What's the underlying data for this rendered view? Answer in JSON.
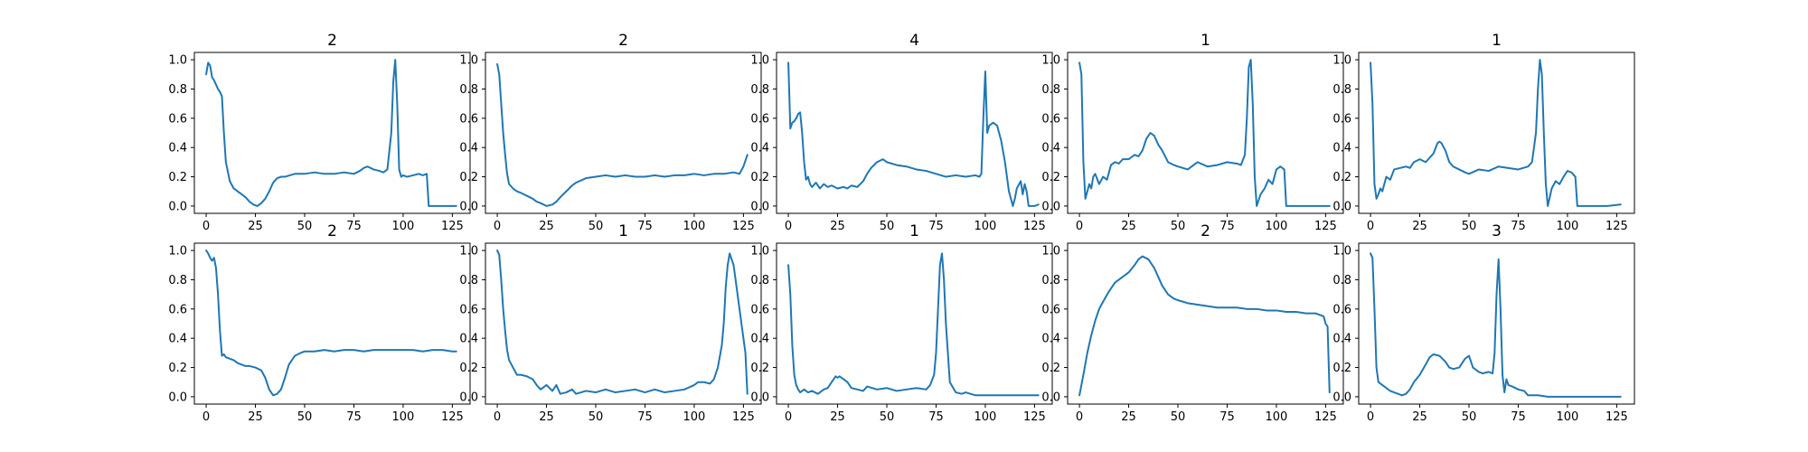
{
  "figure": {
    "background": "#ffffff",
    "series_color": "#1f77b4"
  },
  "chart_data": [
    {
      "type": "line",
      "title": "2",
      "xlim": [
        -6,
        134
      ],
      "ylim": [
        -0.05,
        1.05
      ],
      "x_ticks": [
        0,
        25,
        50,
        75,
        100,
        125
      ],
      "y_ticks": [
        0.0,
        0.2,
        0.4,
        0.6,
        0.8,
        1.0
      ],
      "x": [
        0,
        1,
        2,
        3,
        4,
        5,
        6,
        7,
        8,
        9,
        10,
        12,
        14,
        16,
        18,
        20,
        22,
        24,
        26,
        28,
        30,
        32,
        34,
        36,
        38,
        40,
        45,
        50,
        55,
        60,
        65,
        70,
        75,
        78,
        80,
        82,
        85,
        88,
        90,
        92,
        94,
        95,
        96,
        97,
        98,
        99,
        100,
        102,
        105,
        108,
        110,
        112,
        113,
        120,
        127
      ],
      "y": [
        0.9,
        0.98,
        0.96,
        0.88,
        0.86,
        0.83,
        0.8,
        0.78,
        0.75,
        0.5,
        0.3,
        0.17,
        0.12,
        0.1,
        0.08,
        0.06,
        0.03,
        0.01,
        0.0,
        0.02,
        0.05,
        0.1,
        0.16,
        0.19,
        0.2,
        0.2,
        0.22,
        0.22,
        0.23,
        0.22,
        0.22,
        0.23,
        0.22,
        0.24,
        0.26,
        0.27,
        0.25,
        0.24,
        0.23,
        0.25,
        0.5,
        0.85,
        1.0,
        0.7,
        0.25,
        0.2,
        0.21,
        0.2,
        0.21,
        0.22,
        0.21,
        0.22,
        0.0,
        0.0,
        0.0
      ]
    },
    {
      "type": "line",
      "title": "2",
      "xlim": [
        -6,
        134
      ],
      "ylim": [
        -0.05,
        1.05
      ],
      "x_ticks": [
        0,
        25,
        50,
        75,
        100,
        125
      ],
      "y_ticks": [
        0.0,
        0.2,
        0.4,
        0.6,
        0.8,
        1.0
      ],
      "x": [
        0,
        1,
        2,
        3,
        4,
        5,
        6,
        8,
        10,
        12,
        15,
        18,
        20,
        22,
        25,
        28,
        30,
        32,
        35,
        38,
        40,
        45,
        50,
        55,
        60,
        65,
        70,
        75,
        80,
        85,
        90,
        95,
        100,
        105,
        110,
        115,
        120,
        123,
        125,
        127
      ],
      "y": [
        0.97,
        0.9,
        0.7,
        0.5,
        0.35,
        0.22,
        0.15,
        0.12,
        0.1,
        0.09,
        0.07,
        0.05,
        0.03,
        0.02,
        0.0,
        0.01,
        0.03,
        0.06,
        0.1,
        0.14,
        0.16,
        0.19,
        0.2,
        0.21,
        0.2,
        0.21,
        0.2,
        0.2,
        0.21,
        0.2,
        0.21,
        0.21,
        0.22,
        0.21,
        0.22,
        0.22,
        0.23,
        0.22,
        0.27,
        0.35
      ]
    },
    {
      "type": "line",
      "title": "4",
      "xlim": [
        -6,
        134
      ],
      "ylim": [
        -0.05,
        1.05
      ],
      "x_ticks": [
        0,
        25,
        50,
        75,
        100,
        125
      ],
      "y_ticks": [
        0.0,
        0.2,
        0.4,
        0.6,
        0.8,
        1.0
      ],
      "x": [
        0,
        1,
        2,
        3,
        4,
        5,
        6,
        7,
        8,
        9,
        10,
        11,
        12,
        14,
        16,
        18,
        20,
        22,
        25,
        28,
        30,
        32,
        35,
        38,
        40,
        42,
        45,
        48,
        50,
        55,
        60,
        65,
        70,
        75,
        80,
        85,
        90,
        95,
        97,
        98,
        99,
        100,
        101,
        102,
        104,
        106,
        108,
        110,
        112,
        114,
        115,
        116,
        118,
        119,
        120,
        121,
        122,
        125,
        127
      ],
      "y": [
        0.98,
        0.53,
        0.57,
        0.58,
        0.6,
        0.63,
        0.64,
        0.5,
        0.3,
        0.18,
        0.2,
        0.15,
        0.13,
        0.16,
        0.12,
        0.15,
        0.13,
        0.14,
        0.12,
        0.13,
        0.12,
        0.14,
        0.13,
        0.17,
        0.22,
        0.26,
        0.3,
        0.32,
        0.3,
        0.28,
        0.27,
        0.25,
        0.24,
        0.22,
        0.2,
        0.21,
        0.2,
        0.21,
        0.2,
        0.22,
        0.6,
        0.92,
        0.5,
        0.55,
        0.57,
        0.55,
        0.45,
        0.3,
        0.1,
        0.0,
        0.05,
        0.12,
        0.17,
        0.08,
        0.15,
        0.1,
        0.0,
        0.0,
        0.01
      ]
    },
    {
      "type": "line",
      "title": "1",
      "xlim": [
        -6,
        134
      ],
      "ylim": [
        -0.05,
        1.05
      ],
      "x_ticks": [
        0,
        25,
        50,
        75,
        100,
        125
      ],
      "y_ticks": [
        0.0,
        0.2,
        0.4,
        0.6,
        0.8,
        1.0
      ],
      "x": [
        0,
        1,
        2,
        3,
        4,
        5,
        6,
        7,
        8,
        10,
        12,
        14,
        16,
        18,
        20,
        22,
        25,
        28,
        30,
        32,
        34,
        35,
        36,
        38,
        40,
        42,
        45,
        48,
        50,
        55,
        60,
        65,
        70,
        75,
        80,
        82,
        84,
        85,
        86,
        87,
        88,
        89,
        90,
        92,
        94,
        96,
        98,
        100,
        102,
        104,
        105,
        110,
        120,
        127
      ],
      "y": [
        0.98,
        0.9,
        0.3,
        0.05,
        0.1,
        0.15,
        0.12,
        0.2,
        0.22,
        0.15,
        0.2,
        0.18,
        0.28,
        0.3,
        0.29,
        0.32,
        0.32,
        0.35,
        0.34,
        0.38,
        0.46,
        0.48,
        0.5,
        0.48,
        0.42,
        0.38,
        0.3,
        0.28,
        0.27,
        0.25,
        0.3,
        0.27,
        0.28,
        0.3,
        0.29,
        0.28,
        0.35,
        0.6,
        0.95,
        1.0,
        0.7,
        0.2,
        0.0,
        0.08,
        0.12,
        0.18,
        0.15,
        0.25,
        0.27,
        0.25,
        0.0,
        0.0,
        0.0,
        0.0
      ]
    },
    {
      "type": "line",
      "title": "1",
      "xlim": [
        -6,
        134
      ],
      "ylim": [
        -0.05,
        1.05
      ],
      "x_ticks": [
        0,
        25,
        50,
        75,
        100,
        125
      ],
      "y_ticks": [
        0.0,
        0.2,
        0.4,
        0.6,
        0.8,
        1.0
      ],
      "x": [
        0,
        1,
        2,
        3,
        4,
        5,
        6,
        7,
        8,
        10,
        12,
        15,
        18,
        20,
        22,
        25,
        28,
        30,
        32,
        34,
        35,
        36,
        38,
        40,
        42,
        45,
        48,
        50,
        55,
        60,
        65,
        70,
        75,
        80,
        82,
        84,
        85,
        86,
        87,
        88,
        89,
        90,
        92,
        94,
        96,
        98,
        100,
        102,
        104,
        105,
        110,
        120,
        127
      ],
      "y": [
        0.98,
        0.7,
        0.15,
        0.05,
        0.08,
        0.12,
        0.1,
        0.15,
        0.2,
        0.18,
        0.25,
        0.26,
        0.27,
        0.26,
        0.3,
        0.32,
        0.3,
        0.33,
        0.36,
        0.43,
        0.44,
        0.43,
        0.38,
        0.3,
        0.27,
        0.25,
        0.23,
        0.22,
        0.25,
        0.24,
        0.27,
        0.26,
        0.25,
        0.27,
        0.3,
        0.5,
        0.8,
        1.0,
        0.9,
        0.5,
        0.15,
        0.0,
        0.12,
        0.17,
        0.15,
        0.2,
        0.24,
        0.23,
        0.2,
        0.0,
        0.0,
        0.0,
        0.01
      ]
    },
    {
      "type": "line",
      "title": "2",
      "xlim": [
        -6,
        134
      ],
      "ylim": [
        -0.05,
        1.05
      ],
      "x_ticks": [
        0,
        25,
        50,
        75,
        100,
        125
      ],
      "y_ticks": [
        0.0,
        0.2,
        0.4,
        0.6,
        0.8,
        1.0
      ],
      "x": [
        0,
        1,
        2,
        3,
        4,
        5,
        6,
        7,
        8,
        9,
        10,
        12,
        14,
        16,
        18,
        20,
        22,
        25,
        28,
        30,
        32,
        34,
        36,
        38,
        40,
        42,
        45,
        48,
        50,
        55,
        60,
        65,
        70,
        75,
        80,
        85,
        90,
        95,
        100,
        105,
        110,
        115,
        120,
        125,
        127
      ],
      "y": [
        1.0,
        0.98,
        0.95,
        0.93,
        0.95,
        0.88,
        0.7,
        0.45,
        0.28,
        0.29,
        0.27,
        0.26,
        0.25,
        0.23,
        0.22,
        0.21,
        0.21,
        0.2,
        0.18,
        0.13,
        0.05,
        0.01,
        0.02,
        0.05,
        0.13,
        0.22,
        0.28,
        0.3,
        0.31,
        0.31,
        0.32,
        0.31,
        0.32,
        0.32,
        0.31,
        0.32,
        0.32,
        0.32,
        0.32,
        0.32,
        0.31,
        0.32,
        0.32,
        0.31,
        0.31
      ]
    },
    {
      "type": "line",
      "title": "1",
      "xlim": [
        -6,
        134
      ],
      "ylim": [
        -0.05,
        1.05
      ],
      "x_ticks": [
        0,
        25,
        50,
        75,
        100,
        125
      ],
      "y_ticks": [
        0.0,
        0.2,
        0.4,
        0.6,
        0.8,
        1.0
      ],
      "x": [
        0,
        1,
        2,
        3,
        4,
        5,
        6,
        8,
        10,
        12,
        15,
        18,
        20,
        22,
        25,
        28,
        30,
        32,
        35,
        38,
        40,
        45,
        50,
        55,
        60,
        65,
        70,
        75,
        80,
        85,
        90,
        95,
        100,
        102,
        105,
        108,
        110,
        112,
        114,
        115,
        116,
        117,
        118,
        120,
        122,
        124,
        125,
        126,
        127
      ],
      "y": [
        1.0,
        0.97,
        0.8,
        0.6,
        0.45,
        0.32,
        0.25,
        0.2,
        0.15,
        0.15,
        0.14,
        0.12,
        0.08,
        0.05,
        0.08,
        0.04,
        0.08,
        0.02,
        0.03,
        0.05,
        0.02,
        0.04,
        0.03,
        0.05,
        0.03,
        0.04,
        0.05,
        0.03,
        0.05,
        0.03,
        0.04,
        0.05,
        0.08,
        0.1,
        0.1,
        0.09,
        0.12,
        0.2,
        0.35,
        0.5,
        0.75,
        0.9,
        0.98,
        0.9,
        0.7,
        0.5,
        0.4,
        0.3,
        0.02
      ]
    },
    {
      "type": "line",
      "title": "1",
      "xlim": [
        -6,
        134
      ],
      "ylim": [
        -0.05,
        1.05
      ],
      "x_ticks": [
        0,
        25,
        50,
        75,
        100,
        125
      ],
      "y_ticks": [
        0.0,
        0.2,
        0.4,
        0.6,
        0.8,
        1.0
      ],
      "x": [
        0,
        1,
        2,
        3,
        4,
        5,
        6,
        8,
        10,
        12,
        15,
        18,
        20,
        22,
        24,
        25,
        26,
        28,
        30,
        32,
        35,
        38,
        40,
        45,
        50,
        55,
        60,
        65,
        70,
        72,
        74,
        75,
        76,
        77,
        78,
        79,
        80,
        82,
        85,
        88,
        90,
        95,
        100,
        110,
        120,
        127
      ],
      "y": [
        0.9,
        0.7,
        0.35,
        0.15,
        0.08,
        0.05,
        0.03,
        0.05,
        0.03,
        0.04,
        0.02,
        0.05,
        0.06,
        0.1,
        0.14,
        0.13,
        0.14,
        0.12,
        0.1,
        0.06,
        0.05,
        0.04,
        0.07,
        0.05,
        0.06,
        0.04,
        0.05,
        0.06,
        0.05,
        0.08,
        0.15,
        0.3,
        0.6,
        0.9,
        0.98,
        0.8,
        0.5,
        0.1,
        0.03,
        0.02,
        0.03,
        0.01,
        0.01,
        0.01,
        0.01,
        0.01
      ]
    },
    {
      "type": "line",
      "title": "2",
      "xlim": [
        -6,
        134
      ],
      "ylim": [
        -0.05,
        1.05
      ],
      "x_ticks": [
        0,
        25,
        50,
        75,
        100,
        125
      ],
      "y_ticks": [
        0.0,
        0.2,
        0.4,
        0.6,
        0.8,
        1.0
      ],
      "x": [
        0,
        2,
        4,
        6,
        8,
        10,
        12,
        15,
        18,
        20,
        22,
        25,
        28,
        30,
        32,
        35,
        38,
        40,
        42,
        45,
        48,
        50,
        55,
        60,
        65,
        70,
        75,
        80,
        85,
        90,
        95,
        100,
        105,
        110,
        115,
        120,
        122,
        124,
        125,
        126,
        127
      ],
      "y": [
        0.01,
        0.15,
        0.3,
        0.42,
        0.52,
        0.6,
        0.65,
        0.72,
        0.78,
        0.8,
        0.82,
        0.85,
        0.9,
        0.94,
        0.96,
        0.94,
        0.88,
        0.82,
        0.76,
        0.7,
        0.67,
        0.66,
        0.64,
        0.63,
        0.62,
        0.61,
        0.61,
        0.61,
        0.6,
        0.6,
        0.59,
        0.59,
        0.58,
        0.58,
        0.57,
        0.57,
        0.56,
        0.55,
        0.5,
        0.48,
        0.03
      ]
    },
    {
      "type": "line",
      "title": "3",
      "xlim": [
        -6,
        134
      ],
      "ylim": [
        -0.05,
        1.05
      ],
      "x_ticks": [
        0,
        25,
        50,
        75,
        100,
        125
      ],
      "y_ticks": [
        0.0,
        0.2,
        0.4,
        0.6,
        0.8,
        1.0
      ],
      "x": [
        0,
        1,
        2,
        3,
        4,
        5,
        6,
        8,
        10,
        12,
        14,
        16,
        18,
        20,
        22,
        25,
        28,
        30,
        32,
        35,
        38,
        40,
        42,
        45,
        48,
        50,
        52,
        55,
        57,
        60,
        62,
        63,
        64,
        65,
        66,
        67,
        68,
        69,
        70,
        72,
        75,
        78,
        80,
        85,
        90,
        100,
        110,
        120,
        127
      ],
      "y": [
        0.98,
        0.95,
        0.6,
        0.2,
        0.1,
        0.09,
        0.08,
        0.06,
        0.04,
        0.03,
        0.02,
        0.01,
        0.02,
        0.05,
        0.1,
        0.15,
        0.22,
        0.27,
        0.29,
        0.28,
        0.24,
        0.2,
        0.19,
        0.2,
        0.26,
        0.28,
        0.2,
        0.17,
        0.16,
        0.17,
        0.16,
        0.3,
        0.7,
        0.94,
        0.6,
        0.15,
        0.03,
        0.12,
        0.08,
        0.07,
        0.05,
        0.04,
        0.01,
        0.01,
        0.0,
        0.0,
        0.0,
        0.0,
        0.0
      ]
    }
  ]
}
